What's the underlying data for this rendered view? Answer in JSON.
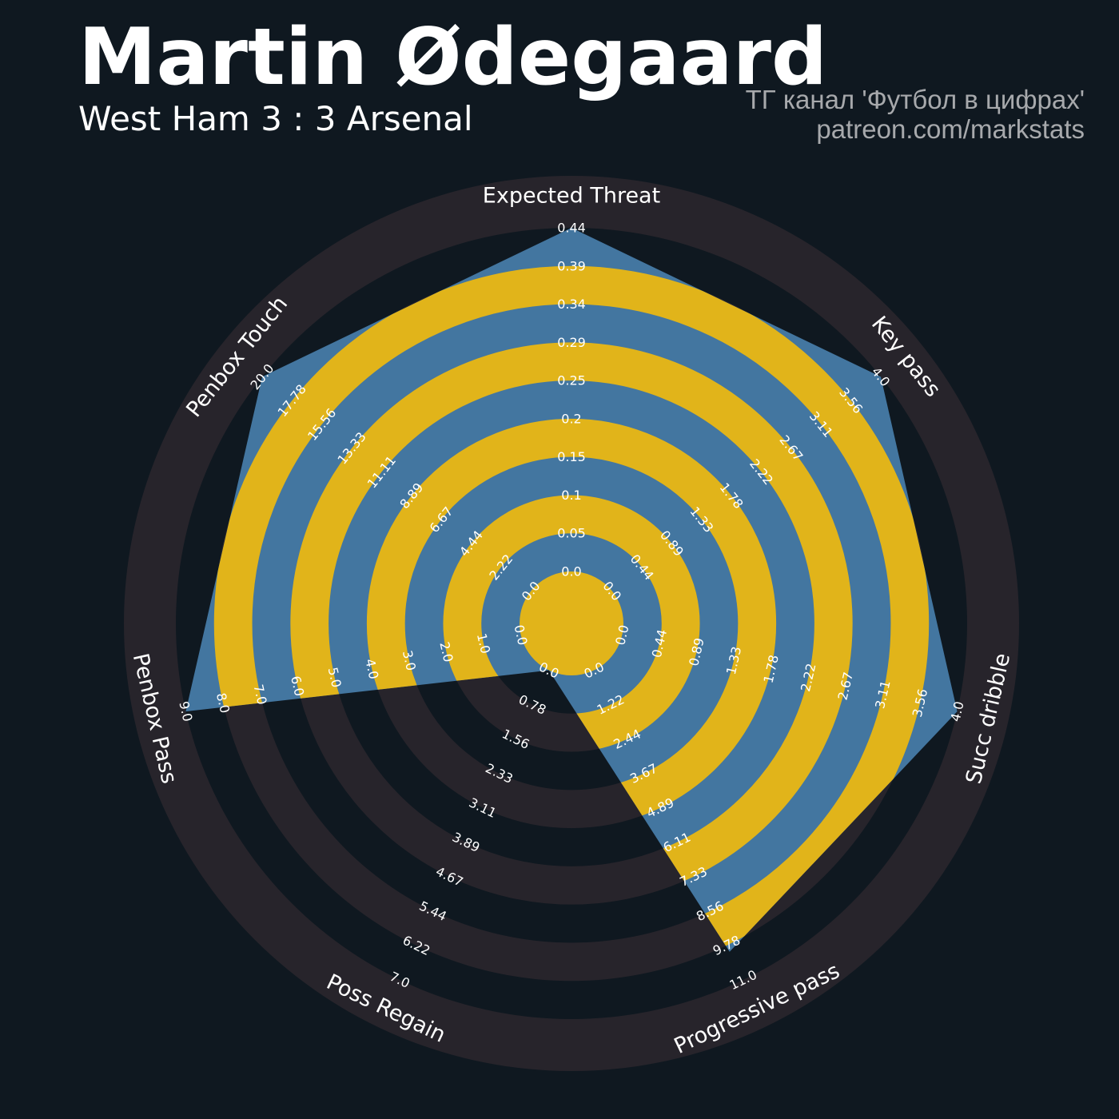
{
  "header": {
    "player_name": "Martin Ødegaard",
    "match": "West Ham 3 : 3 Arsenal",
    "credit_line1": "ТГ канал 'Футбол в цифрах'",
    "credit_line2": "patreon.com/markstats"
  },
  "colors": {
    "background": "#0f1820",
    "ring_dark": "#27242b",
    "ring_light": "#0f1820",
    "player_fill": "#4376a0",
    "player_rings": "#e1b41a",
    "label_text": "#ffffff"
  },
  "chart_data": {
    "type": "radar",
    "title": "Martin Ødegaard",
    "subtitle": "West Ham 3 : 3 Arsenal",
    "parameters": [
      {
        "name": "Expected Threat",
        "min": 0.0,
        "max": 0.44,
        "ticks": [
          "0.0",
          "0.05",
          "0.1",
          "0.15",
          "0.2",
          "0.25",
          "0.29",
          "0.34",
          "0.39",
          "0.44"
        ]
      },
      {
        "name": "Key pass",
        "min": 0.0,
        "max": 4.0,
        "ticks": [
          "0.0",
          "0.44",
          "0.89",
          "1.33",
          "1.78",
          "2.22",
          "2.67",
          "3.11",
          "3.56",
          "4.0"
        ]
      },
      {
        "name": "Succ dribble",
        "min": 0.0,
        "max": 4.0,
        "ticks": [
          "0.0",
          "0.44",
          "0.89",
          "1.33",
          "1.78",
          "2.22",
          "2.67",
          "3.11",
          "3.56",
          "4.0"
        ]
      },
      {
        "name": "Progressive pass",
        "min": 0.0,
        "max": 11.0,
        "ticks": [
          "0.0",
          "1.22",
          "2.44",
          "3.67",
          "4.89",
          "6.11",
          "7.33",
          "8.56",
          "9.78",
          "11.0"
        ]
      },
      {
        "name": "Poss Regain",
        "min": 0.0,
        "max": 7.0,
        "ticks": [
          "0.0",
          "0.78",
          "1.56",
          "2.33",
          "3.11",
          "3.89",
          "4.67",
          "5.44",
          "6.22",
          "7.0"
        ]
      },
      {
        "name": "Penbox Pass",
        "min": 0.0,
        "max": 9.0,
        "ticks": [
          "0.0",
          "1.0",
          "2.0",
          "3.0",
          "4.0",
          "5.0",
          "6.0",
          "7.0",
          "8.0",
          "9.0"
        ]
      },
      {
        "name": "Penbox Touch",
        "min": 0.0,
        "max": 20.0,
        "ticks": [
          "0.0",
          "2.22",
          "4.44",
          "6.67",
          "8.89",
          "11.11",
          "13.33",
          "15.56",
          "17.78",
          "20.0"
        ]
      }
    ],
    "values": [
      0.44,
      4.0,
      4.0,
      10.0,
      0.0,
      9.0,
      20.0
    ],
    "grid": "alternating concentric rings"
  }
}
